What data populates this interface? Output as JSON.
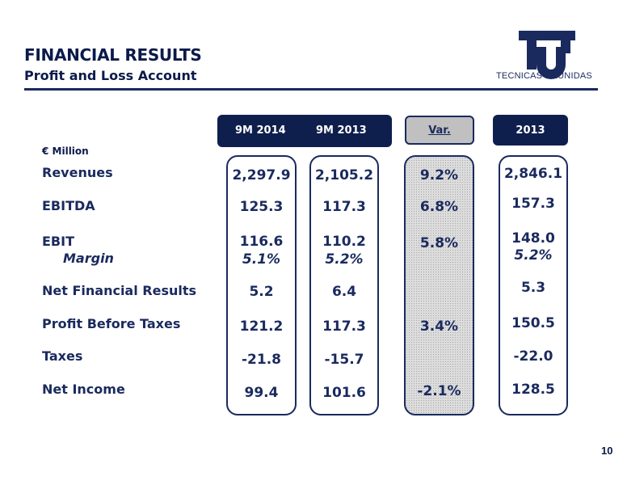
{
  "header": {
    "title": "FINANCIAL RESULTS",
    "subtitle": "Profit and Loss Account",
    "logo_text": "TECNICAS REUNIDAS",
    "logo_icon": "tr-logo-icon"
  },
  "columns": {
    "col1": "9M 2014",
    "col2": "9M 2013",
    "var": "Var.",
    "col3": "2013"
  },
  "unit": "€ Million",
  "rows": [
    {
      "label": "Revenues",
      "col1": "2,297.9",
      "col2": "2,105.2",
      "var": "9.2%",
      "col3": "2,846.1"
    },
    {
      "label": "EBITDA",
      "col1": "125.3",
      "col2": "117.3",
      "var": "6.8%",
      "col3": "157.3"
    },
    {
      "label": "EBIT",
      "col1": "116.6",
      "col2": "110.2",
      "var": "5.8%",
      "col3": "148.0"
    },
    {
      "label": "Margin",
      "col1": "5.1%",
      "col2": "5.2%",
      "var": "",
      "col3": "5.2%"
    },
    {
      "label": "Net Financial Results",
      "col1": "5.2",
      "col2": "6.4",
      "var": "",
      "col3": "5.3"
    },
    {
      "label": "Profit Before Taxes",
      "col1": "121.2",
      "col2": "117.3",
      "var": "3.4%",
      "col3": "150.5"
    },
    {
      "label": "Taxes",
      "col1": "-21.8",
      "col2": "-15.7",
      "var": "",
      "col3": "-22.0"
    },
    {
      "label": "Net Income",
      "col1": "99.4",
      "col2": "101.6",
      "var": "-2.1%",
      "col3": "128.5"
    }
  ],
  "page_number": "10",
  "colors": {
    "navy": "#0f1f4d",
    "text": "#1a2a5e",
    "var_bg": "#c0c0c0"
  }
}
